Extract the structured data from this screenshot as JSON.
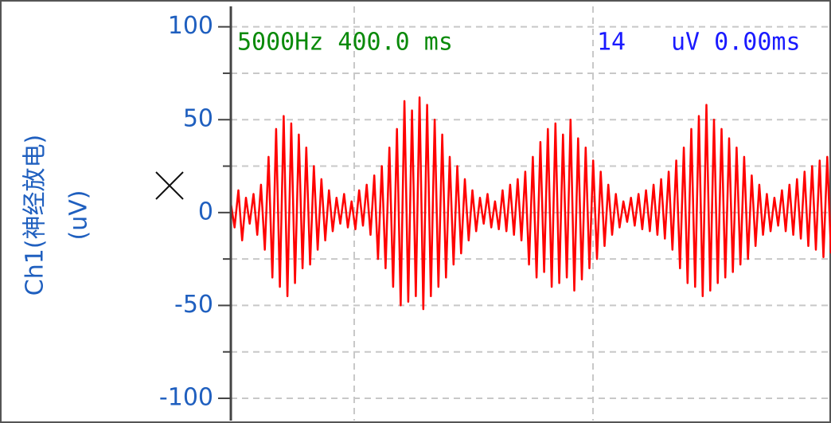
{
  "chart_data": {
    "type": "line",
    "y_label": "Ch1(神经放电)",
    "y_unit": "(uV)",
    "annotations": [
      "5000Hz 400.0 ms",
      "14",
      "uV 0.00ms"
    ],
    "ylim": [
      -112,
      111
    ],
    "yticks": [
      100,
      50,
      0,
      -50,
      -100
    ],
    "minor_yticks": [
      75,
      25,
      -25,
      -75
    ],
    "grid": true,
    "series": [
      {
        "color": "#ff0000",
        "values": [
          5,
          -8,
          12,
          -15,
          8,
          -6,
          10,
          -12,
          15,
          -20,
          30,
          -35,
          45,
          -40,
          52,
          -45,
          48,
          -38,
          42,
          -30,
          35,
          -28,
          25,
          -20,
          18,
          -15,
          12,
          -10,
          8,
          -6,
          10,
          -8,
          6,
          -9,
          12,
          -7,
          15,
          -12,
          20,
          -25,
          25,
          -30,
          35,
          -40,
          45,
          -50,
          60,
          -48,
          55,
          -45,
          62,
          -52,
          58,
          -45,
          50,
          -40,
          42,
          -35,
          30,
          -28,
          25,
          -22,
          18,
          -15,
          12,
          -10,
          8,
          -6,
          10,
          -8,
          6,
          -9,
          12,
          -10,
          15,
          -12,
          18,
          -15,
          22,
          -28,
          30,
          -35,
          38,
          -32,
          45,
          -40,
          48,
          -38,
          42,
          -35,
          50,
          -42,
          40,
          -36,
          35,
          -30,
          28,
          -25,
          22,
          -18,
          15,
          -12,
          10,
          -8,
          6,
          -5,
          8,
          -7,
          10,
          -9,
          12,
          -10,
          15,
          -12,
          18,
          -14,
          22,
          -20,
          28,
          -30,
          35,
          -38,
          45,
          -40,
          52,
          -45,
          58,
          -42,
          50,
          -38,
          45,
          -35,
          40,
          -32,
          35,
          -28,
          30,
          -25,
          20,
          -18,
          15,
          -12,
          10,
          -10,
          8,
          -7,
          12,
          -10,
          15,
          -12,
          18,
          -14,
          22,
          -18,
          25,
          -20,
          28,
          -24,
          30,
          -22
        ]
      }
    ]
  }
}
